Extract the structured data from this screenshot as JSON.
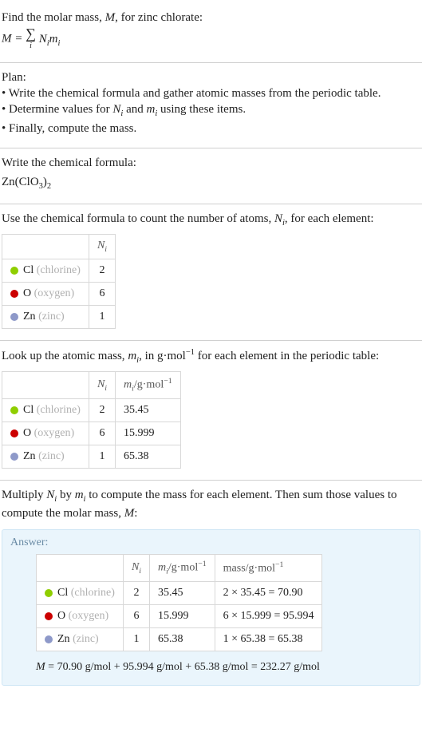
{
  "intro": {
    "line1_a": "Find the molar mass, ",
    "line1_b": ", for zinc chlorate:",
    "formula_lhs": "M",
    "formula_eq": " = ",
    "formula_sigma": "∑",
    "formula_idx": "i",
    "formula_rhs_a": "N",
    "formula_rhs_b": "m"
  },
  "plan": {
    "heading": "Plan:",
    "b1": "• Write the chemical formula and gather atomic masses from the periodic table.",
    "b2_a": "• Determine values for ",
    "b2_b": " and ",
    "b2_c": " using these items.",
    "b3": "• Finally, compute the mass."
  },
  "chemformula": {
    "heading": "Write the chemical formula:",
    "base": "Zn(ClO",
    "sub1": "3",
    "paren": ")",
    "sub2": "2"
  },
  "count": {
    "heading_a": "Use the chemical formula to count the number of atoms, ",
    "heading_b": ", for each element:",
    "header_n": "N",
    "rows": [
      {
        "color": "#8fce00",
        "sym": "Cl",
        "name": "(chlorine)",
        "n": "2"
      },
      {
        "color": "#cc0000",
        "sym": "O",
        "name": "(oxygen)",
        "n": "6"
      },
      {
        "color": "#8e99c9",
        "sym": "Zn",
        "name": "(zinc)",
        "n": "1"
      }
    ]
  },
  "lookup": {
    "heading_a": "Look up the atomic mass, ",
    "heading_b": ", in g·mol",
    "heading_c": " for each element in the periodic table:",
    "header_m": "m",
    "header_unit": "/g·mol",
    "rows": [
      {
        "color": "#8fce00",
        "sym": "Cl",
        "name": "(chlorine)",
        "n": "2",
        "m": "35.45"
      },
      {
        "color": "#cc0000",
        "sym": "O",
        "name": "(oxygen)",
        "n": "6",
        "m": "15.999"
      },
      {
        "color": "#8e99c9",
        "sym": "Zn",
        "name": "(zinc)",
        "n": "1",
        "m": "65.38"
      }
    ]
  },
  "multiply": {
    "line_a": "Multiply ",
    "line_b": " by ",
    "line_c": " to compute the mass for each element. Then sum those values to compute the molar mass, "
  },
  "answer": {
    "label": "Answer:",
    "header_mass": "mass/g·mol",
    "rows": [
      {
        "color": "#8fce00",
        "sym": "Cl",
        "name": "(chlorine)",
        "n": "2",
        "m": "35.45",
        "calc": "2 × 35.45 = 70.90"
      },
      {
        "color": "#cc0000",
        "sym": "O",
        "name": "(oxygen)",
        "n": "6",
        "m": "15.999",
        "calc": "6 × 15.999 = 95.994"
      },
      {
        "color": "#8e99c9",
        "sym": "Zn",
        "name": "(zinc)",
        "n": "1",
        "m": "65.38",
        "calc": "1 × 65.38 = 65.38"
      }
    ],
    "final_a": "M",
    "final_b": " = 70.90 g/mol + 95.994 g/mol + 65.38 g/mol = 232.27 g/mol"
  },
  "style": {
    "table_border": "#d8d8d8",
    "answer_bg": "#eaf5fc",
    "answer_border": "#cfe6f5",
    "muted": "#b0b0b0"
  }
}
